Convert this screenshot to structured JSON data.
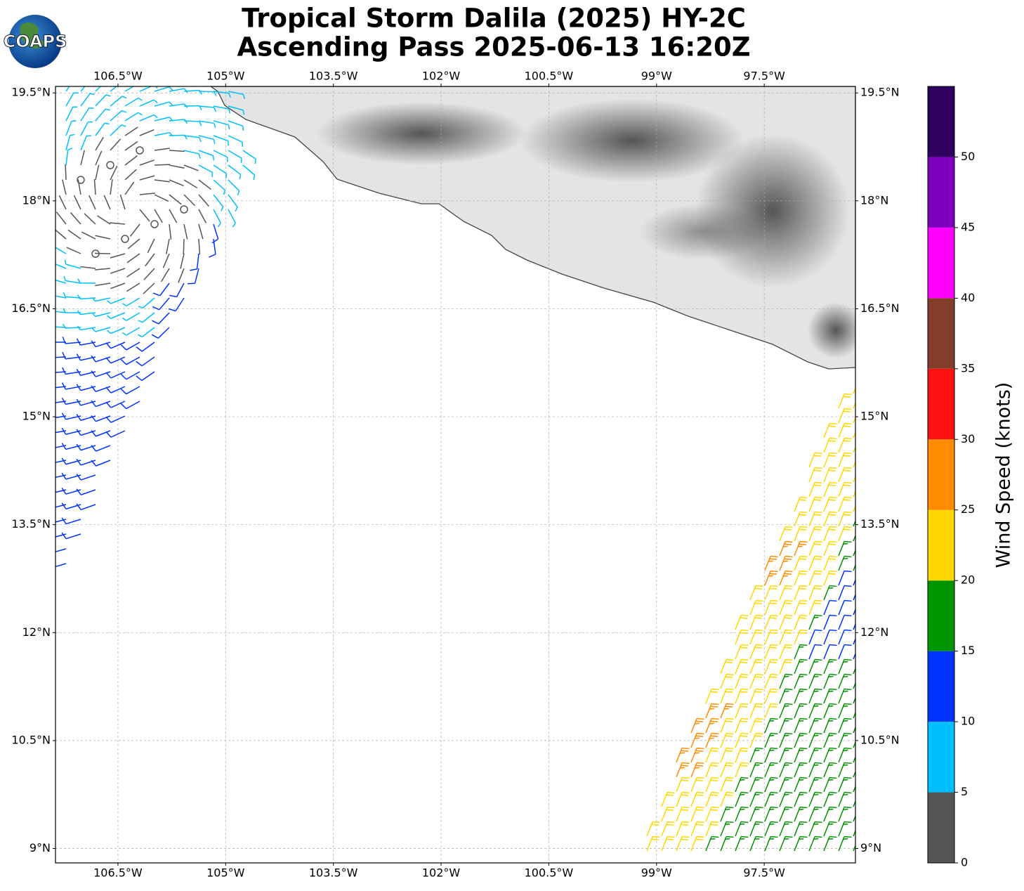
{
  "logo": "COAPS",
  "title": "Tropical Storm Dalila (2025) HY-2C",
  "subtitle": "Ascending Pass 2025-06-13 16:20Z",
  "map": {
    "xlim": [
      -107.37,
      -96.23
    ],
    "ylim": [
      8.8,
      19.59
    ],
    "xticks": [
      {
        "value": -106.5,
        "label": "106.5°W"
      },
      {
        "value": -105,
        "label": "105°W"
      },
      {
        "value": -103.5,
        "label": "103.5°W"
      },
      {
        "value": -102,
        "label": "102°W"
      },
      {
        "value": -100.5,
        "label": "100.5°W"
      },
      {
        "value": -99,
        "label": "99°W"
      },
      {
        "value": -97.5,
        "label": "97.5°W"
      }
    ],
    "yticks": [
      {
        "value": 9,
        "label": "9°N"
      },
      {
        "value": 10.5,
        "label": "10.5°N"
      },
      {
        "value": 12,
        "label": "12°N"
      },
      {
        "value": 13.5,
        "label": "13.5°N"
      },
      {
        "value": 15,
        "label": "15°N"
      },
      {
        "value": 16.5,
        "label": "16.5°N"
      },
      {
        "value": 18,
        "label": "18°N"
      },
      {
        "value": 19.5,
        "label": "19.5°N"
      }
    ],
    "grid": true
  },
  "colorbar": {
    "label": "Wind Speed (knots)",
    "lim": [
      0,
      55
    ],
    "ticks": [
      0,
      5,
      10,
      15,
      20,
      25,
      30,
      35,
      40,
      45,
      50
    ],
    "colors": [
      "#555555",
      "#00bfff",
      "#0033ff",
      "#009400",
      "#ffd700",
      "#ff8c00",
      "#ff1010",
      "#823e2a",
      "#ff00ff",
      "#8000c0",
      "#300060"
    ]
  }
}
